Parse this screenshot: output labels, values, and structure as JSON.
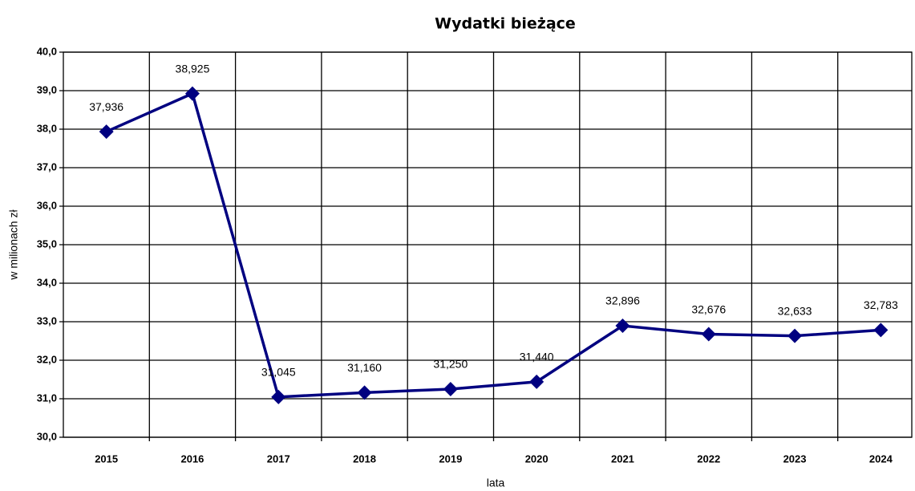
{
  "chart_data": {
    "type": "line",
    "title": "Wydatki bieżące",
    "xlabel": "lata",
    "ylabel": "w milionach zł",
    "categories": [
      "2015",
      "2016",
      "2017",
      "2018",
      "2019",
      "2020",
      "2021",
      "2022",
      "2023",
      "2024"
    ],
    "series": [
      {
        "name": "Wydatki bieżące",
        "color": "#000080",
        "values": [
          37.936,
          38.925,
          31.045,
          31.16,
          31.25,
          31.44,
          32.896,
          32.676,
          32.633,
          32.783
        ],
        "value_labels": [
          "37,936",
          "38,925",
          "31,045",
          "31,160",
          "31,250",
          "31,440",
          "32,896",
          "32,676",
          "32,633",
          "32,783"
        ]
      }
    ],
    "ylim": [
      30,
      40
    ],
    "yticks": [
      {
        "value": 30,
        "label": "30,0"
      },
      {
        "value": 31,
        "label": "31,0"
      },
      {
        "value": 32,
        "label": "32,0"
      },
      {
        "value": 33,
        "label": "33,0"
      },
      {
        "value": 34,
        "label": "34,0"
      },
      {
        "value": 35,
        "label": "35,0"
      },
      {
        "value": 36,
        "label": "36,0"
      },
      {
        "value": 37,
        "label": "37,0"
      },
      {
        "value": 38,
        "label": "38,0"
      },
      {
        "value": 39,
        "label": "39,0"
      },
      {
        "value": 40,
        "label": "40,0"
      }
    ],
    "grid": true
  }
}
